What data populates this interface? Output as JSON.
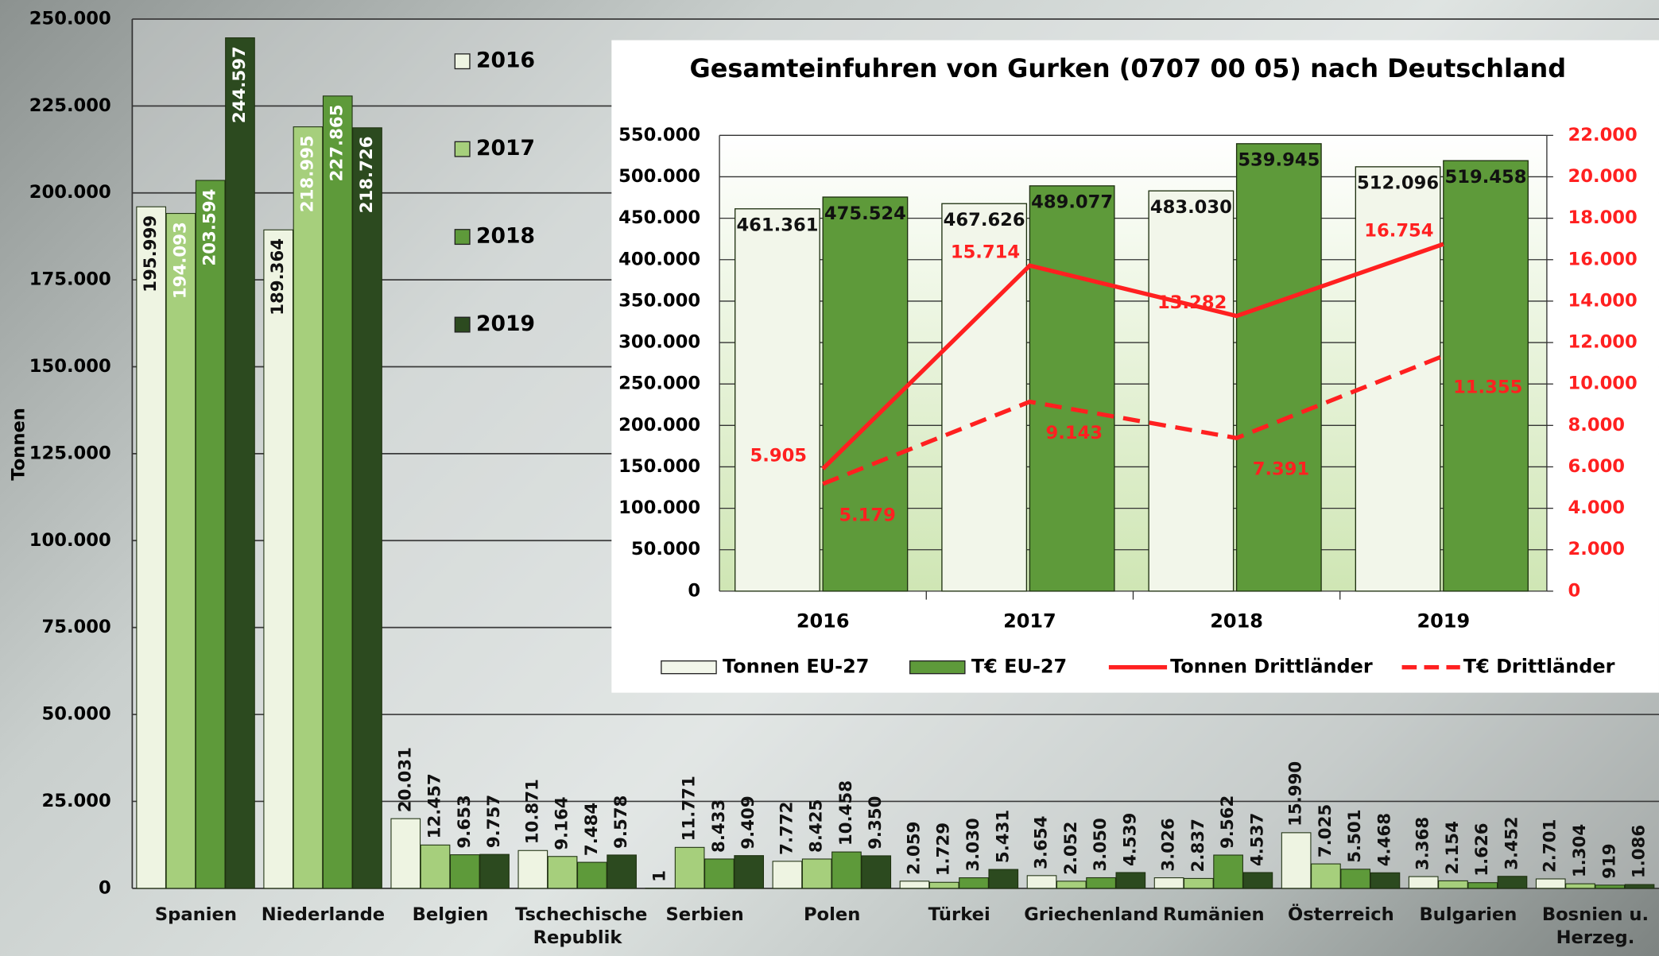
{
  "chart_data": [
    {
      "type": "bar",
      "y_label": "Tonnen",
      "categories": [
        "Spanien",
        "Niederlande",
        "Belgien",
        "Tschechische Republik",
        "Serbien",
        "Polen",
        "Türkei",
        "Griechenland",
        "Rumänien",
        "Österreich",
        "Bulgarien",
        "Bosnien u. Herzeg."
      ],
      "series": [
        {
          "name": "2016",
          "color": "#eef4e2",
          "values": [
            195999,
            189364,
            20031,
            10871,
            1,
            7772,
            2059,
            3654,
            3026,
            15990,
            3368,
            2701
          ],
          "value_labels": [
            "195.999",
            "189.364",
            "20.031",
            "10.871",
            "1",
            "7.772",
            "2.059",
            "3.654",
            "3.026",
            "15.990",
            "3.368",
            "2.701"
          ]
        },
        {
          "name": "2017",
          "color": "#a6cf7c",
          "values": [
            194093,
            218995,
            12457,
            9164,
            11771,
            8425,
            1729,
            2052,
            2837,
            7025,
            2154,
            1304
          ],
          "value_labels": [
            "194.093",
            "218.995",
            "12.457",
            "9.164",
            "11.771",
            "8.425",
            "1.729",
            "2.052",
            "2.837",
            "7.025",
            "2.154",
            "1.304"
          ]
        },
        {
          "name": "2018",
          "color": "#5e9a3a",
          "values": [
            203594,
            227865,
            9653,
            7484,
            8433,
            10458,
            3030,
            3050,
            9562,
            5501,
            1626,
            919
          ],
          "value_labels": [
            "203.594",
            "227.865",
            "9.653",
            "7.484",
            "8.433",
            "10.458",
            "3.030",
            "3.050",
            "9.562",
            "5.501",
            "1.626",
            "919"
          ]
        },
        {
          "name": "2019",
          "color": "#2c4a1f",
          "values": [
            244597,
            218726,
            9757,
            9578,
            9409,
            9350,
            5431,
            4539,
            4537,
            4468,
            3452,
            1086
          ],
          "value_labels": [
            "244.597",
            "218.726",
            "9.757",
            "9.578",
            "9.409",
            "9.350",
            "5.431",
            "4.539",
            "4.537",
            "4.468",
            "3.452",
            "1.086"
          ]
        }
      ],
      "ylim": [
        0,
        250000
      ],
      "yticks": [
        {
          "value": 0,
          "label": "0"
        },
        {
          "value": 25000,
          "label": "25.000"
        },
        {
          "value": 50000,
          "label": "50.000"
        },
        {
          "value": 75000,
          "label": "75.000"
        },
        {
          "value": 100000,
          "label": "100.000"
        },
        {
          "value": 125000,
          "label": "125.000"
        },
        {
          "value": 150000,
          "label": "150.000"
        },
        {
          "value": 175000,
          "label": "175.000"
        },
        {
          "value": 200000,
          "label": "200.000"
        },
        {
          "value": 225000,
          "label": "225.000"
        },
        {
          "value": 250000,
          "label": "250.000"
        }
      ],
      "grid": true
    },
    {
      "type": "combo",
      "title": "Gesamteinfuhren von Gurken (0707 00 05) nach Deutschland",
      "categories": [
        "2016",
        "2017",
        "2018",
        "2019"
      ],
      "series": [
        {
          "name": "Tonnen EU-27",
          "kind": "bar",
          "color": "#f2f6ea",
          "values": [
            461361,
            467626,
            483030,
            512096
          ],
          "value_labels": [
            "461.361",
            "467.626",
            "483.030",
            "512.096"
          ]
        },
        {
          "name": "T€ EU-27",
          "kind": "bar",
          "color": "#5e9a3a",
          "values": [
            475524,
            489077,
            539945,
            519458
          ],
          "value_labels": [
            "475.524",
            "489.077",
            "539.945",
            "519.458"
          ]
        },
        {
          "name": "Tonnen Drittländer",
          "kind": "line",
          "axis": "y2",
          "style": "solid",
          "color": "#ff2020",
          "values": [
            5905,
            15714,
            13282,
            16754
          ],
          "value_labels": [
            "5.905",
            "15.714",
            "13.282",
            "16.754"
          ]
        },
        {
          "name": "T€ Drittländer",
          "kind": "line",
          "axis": "y2",
          "style": "dashed",
          "color": "#ff2020",
          "values": [
            5179,
            9143,
            7391,
            11355
          ],
          "value_labels": [
            "5.179",
            "9.143",
            "7.391",
            "11.355"
          ]
        }
      ],
      "ylim": [
        0,
        550000
      ],
      "yticks": [
        {
          "value": 0,
          "label": "0"
        },
        {
          "value": 50000,
          "label": "50.000"
        },
        {
          "value": 100000,
          "label": "100.000"
        },
        {
          "value": 150000,
          "label": "150.000"
        },
        {
          "value": 200000,
          "label": "200.000"
        },
        {
          "value": 250000,
          "label": "250.000"
        },
        {
          "value": 300000,
          "label": "300.000"
        },
        {
          "value": 350000,
          "label": "350.000"
        },
        {
          "value": 400000,
          "label": "400.000"
        },
        {
          "value": 450000,
          "label": "450.000"
        },
        {
          "value": 500000,
          "label": "500.000"
        },
        {
          "value": 550000,
          "label": "550.000"
        }
      ],
      "y2lim": [
        0,
        22000
      ],
      "y2ticks": [
        {
          "value": 0,
          "label": "0"
        },
        {
          "value": 2000,
          "label": "2.000"
        },
        {
          "value": 4000,
          "label": "4.000"
        },
        {
          "value": 6000,
          "label": "6.000"
        },
        {
          "value": 8000,
          "label": "8.000"
        },
        {
          "value": 10000,
          "label": "10.000"
        },
        {
          "value": 12000,
          "label": "12.000"
        },
        {
          "value": 14000,
          "label": "14.000"
        },
        {
          "value": 16000,
          "label": "16.000"
        },
        {
          "value": 18000,
          "label": "18.000"
        },
        {
          "value": 20000,
          "label": "20.000"
        },
        {
          "value": 22000,
          "label": "22.000"
        }
      ],
      "grid": true
    }
  ]
}
